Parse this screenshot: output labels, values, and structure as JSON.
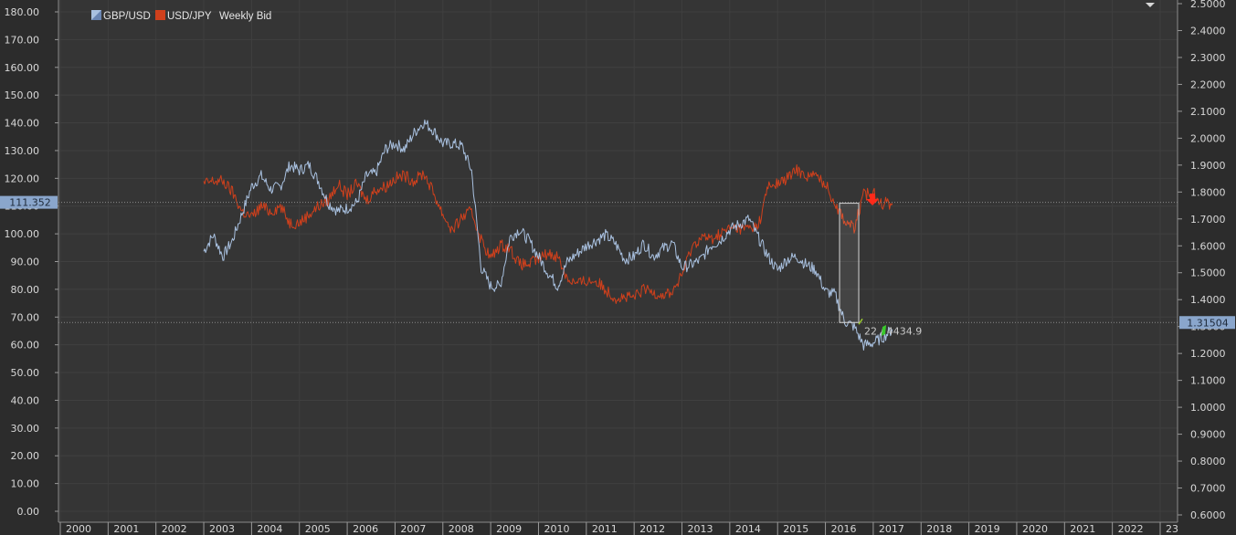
{
  "chart_data": {
    "type": "line",
    "title": "",
    "legend": {
      "position": "top-left",
      "items": [
        {
          "name": "GBP/USD",
          "color": "#a9c1e0"
        },
        {
          "name": "USD/JPY",
          "color": "#d0401c"
        }
      ],
      "suffix": "Weekly Bid"
    },
    "background": "#2c2c2c",
    "grid": true,
    "x_axis": {
      "ticks": [
        "2000",
        "2001",
        "2002",
        "2003",
        "2004",
        "2005",
        "2006",
        "2007",
        "2008",
        "2009",
        "2010",
        "2011",
        "2012",
        "2013",
        "2014",
        "2015",
        "2016",
        "2017",
        "2018",
        "2019",
        "2020",
        "2021",
        "2022",
        "23"
      ],
      "range": [
        2000,
        2023
      ]
    },
    "y_axis_left": {
      "label": "",
      "range": [
        0,
        180
      ],
      "ticks": [
        "0.00",
        "10.00",
        "20.00",
        "30.00",
        "40.00",
        "50.00",
        "60.00",
        "70.00",
        "80.00",
        "90.00",
        "100.00",
        "110.00",
        "120.00",
        "130.00",
        "140.00",
        "150.00",
        "160.00",
        "170.00",
        "180.00"
      ]
    },
    "y_axis_right": {
      "label": "",
      "range": [
        0.6,
        2.5
      ],
      "ticks": [
        "0.6000",
        "0.7000",
        "0.8000",
        "0.9000",
        "1.0000",
        "1.1000",
        "1.2000",
        "1.3000",
        "1.4000",
        "1.5000",
        "1.6000",
        "1.7000",
        "1.8000",
        "1.9000",
        "2.0000",
        "2.1000",
        "2.2000",
        "2.3000",
        "2.4000",
        "2.5000"
      ]
    },
    "series": [
      {
        "name": "GBP/USD",
        "axis": "right",
        "color": "#a9c1e0",
        "x": [
          2003.0,
          2003.2,
          2003.4,
          2003.6,
          2003.8,
          2004.0,
          2004.2,
          2004.4,
          2004.6,
          2004.8,
          2005.0,
          2005.2,
          2005.4,
          2005.6,
          2005.8,
          2006.0,
          2006.2,
          2006.4,
          2006.6,
          2006.8,
          2007.0,
          2007.2,
          2007.4,
          2007.6,
          2007.8,
          2008.0,
          2008.2,
          2008.4,
          2008.6,
          2008.8,
          2009.0,
          2009.2,
          2009.4,
          2009.6,
          2009.8,
          2010.0,
          2010.2,
          2010.4,
          2010.6,
          2010.8,
          2011.0,
          2011.2,
          2011.4,
          2011.6,
          2011.8,
          2012.0,
          2012.2,
          2012.4,
          2012.6,
          2012.8,
          2013.0,
          2013.2,
          2013.4,
          2013.6,
          2013.8,
          2014.0,
          2014.2,
          2014.4,
          2014.6,
          2014.8,
          2015.0,
          2015.2,
          2015.4,
          2015.6,
          2015.8,
          2016.0,
          2016.2,
          2016.4,
          2016.6,
          2016.8,
          2017.0,
          2017.2,
          2017.4
        ],
        "values": [
          1.58,
          1.64,
          1.56,
          1.62,
          1.72,
          1.82,
          1.86,
          1.81,
          1.82,
          1.9,
          1.88,
          1.9,
          1.84,
          1.76,
          1.73,
          1.74,
          1.76,
          1.86,
          1.87,
          1.96,
          1.98,
          1.96,
          2.02,
          2.06,
          2.03,
          1.98,
          1.98,
          1.97,
          1.88,
          1.52,
          1.45,
          1.45,
          1.63,
          1.66,
          1.62,
          1.56,
          1.5,
          1.45,
          1.54,
          1.57,
          1.6,
          1.62,
          1.64,
          1.61,
          1.55,
          1.56,
          1.61,
          1.56,
          1.59,
          1.61,
          1.52,
          1.53,
          1.55,
          1.6,
          1.62,
          1.66,
          1.68,
          1.7,
          1.63,
          1.56,
          1.51,
          1.55,
          1.56,
          1.53,
          1.51,
          1.43,
          1.42,
          1.32,
          1.3,
          1.23,
          1.24,
          1.26,
          1.29
        ]
      },
      {
        "name": "USD/JPY",
        "axis": "left",
        "color": "#d0401c",
        "x": [
          2003.0,
          2003.2,
          2003.4,
          2003.6,
          2003.8,
          2004.0,
          2004.2,
          2004.4,
          2004.6,
          2004.8,
          2005.0,
          2005.2,
          2005.4,
          2005.6,
          2005.8,
          2006.0,
          2006.2,
          2006.4,
          2006.6,
          2006.8,
          2007.0,
          2007.2,
          2007.4,
          2007.6,
          2007.8,
          2008.0,
          2008.2,
          2008.4,
          2008.6,
          2008.8,
          2009.0,
          2009.2,
          2009.4,
          2009.6,
          2009.8,
          2010.0,
          2010.2,
          2010.4,
          2010.6,
          2010.8,
          2011.0,
          2011.2,
          2011.4,
          2011.6,
          2011.8,
          2012.0,
          2012.2,
          2012.4,
          2012.6,
          2012.8,
          2013.0,
          2013.2,
          2013.4,
          2013.6,
          2013.8,
          2014.0,
          2014.2,
          2014.4,
          2014.6,
          2014.8,
          2015.0,
          2015.2,
          2015.4,
          2015.6,
          2015.8,
          2016.0,
          2016.2,
          2016.4,
          2016.6,
          2016.8,
          2017.0,
          2017.2,
          2017.4
        ],
        "values": [
          118,
          119,
          119,
          115,
          108,
          106,
          110,
          108,
          110,
          104,
          104,
          107,
          110,
          112,
          118,
          114,
          118,
          112,
          116,
          117,
          120,
          121,
          119,
          122,
          115,
          107,
          101,
          106,
          108,
          98,
          91,
          96,
          95,
          89,
          89,
          91,
          93,
          92,
          84,
          82,
          83,
          83,
          80,
          77,
          77,
          77,
          80,
          79,
          78,
          79,
          85,
          95,
          99,
          98,
          100,
          102,
          102,
          102,
          103,
          117,
          118,
          120,
          123,
          121,
          121,
          118,
          111,
          105,
          102,
          114,
          115,
          111,
          111
        ]
      }
    ],
    "current_values": {
      "left": "111.352",
      "right": "1.31504"
    },
    "annotations": {
      "measure_text": "22 / 4434.9"
    }
  }
}
